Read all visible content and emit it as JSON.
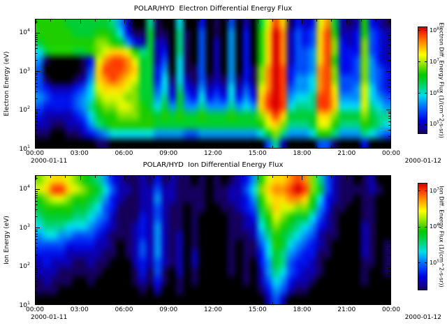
{
  "window": {
    "background": "#ffffff"
  },
  "colormap_stops": [
    [
      0.0,
      "#000000"
    ],
    [
      0.08,
      "#19006e"
    ],
    [
      0.18,
      "#0000e6"
    ],
    [
      0.3,
      "#006eff"
    ],
    [
      0.4,
      "#00dceb"
    ],
    [
      0.5,
      "#00d25a"
    ],
    [
      0.58,
      "#00c800"
    ],
    [
      0.68,
      "#96e600"
    ],
    [
      0.76,
      "#ffff00"
    ],
    [
      0.85,
      "#ffa000"
    ],
    [
      0.93,
      "#ff4600"
    ],
    [
      1.0,
      "#d70000"
    ]
  ],
  "chart_data": [
    {
      "type": "heatmap",
      "title": "POLAR/HYD  Electron Differential Energy Flux",
      "ylabel": "Electron Energy (eV)",
      "y_scale": "log",
      "y_log_range": [
        1,
        4.35
      ],
      "y_decades": [
        4,
        3,
        2,
        1
      ],
      "x_range_hours": [
        0,
        24
      ],
      "x_tick_labels": [
        "00:00",
        "03:00",
        "06:00",
        "09:00",
        "12:00",
        "15:00",
        "18:00",
        "21:00",
        "00:00"
      ],
      "date_left": "2000-01-11",
      "date_right": "2000-01-12",
      "colorbar": {
        "label": "Electron Diff. Energy Flux (1/(cm^2-s-sr))",
        "tick_exponents": [
          8,
          7,
          6,
          5
        ],
        "log_range": [
          4.7,
          8.1
        ]
      },
      "n_cols": 48,
      "col_duration_hours": 0.5,
      "grid_note": "rows top-to-bottom = high-to-low energy (log spaced 10^4.35 to 10^1 eV); 48 half-hour columns; hex digit 0-f = relative log10 flux intensity",
      "grid_hex_rows": [
        "9999888888752007100600301040208bec1323bd82129321",
        "9999988899863118110710401050309cfd2434ce92239432",
        "89999999aa985328220710402050309cfd2434cea323a432",
        "68999889abccb978230710402050309cfd2445cea333a432",
        "51000013bdeedb88240610402050309cfd2445ce9334a532",
        "40000014ceeedc8835061140205031adfe3445dea334a543",
        "41000125cdedcb8836162141215131adfe3556dea444a543",
        "43222346bcccba8846273252326242bdfe4556deb445b643",
        "54333456abbbaa8857384363436353cefe5667eec555b654",
        "433334579aabba9868585575557565cefe6777eec666b765",
        "32222346899aaa9989898898889888acec8888cca888a877",
        "2211223578999999888888888888889bca7778bb97779876",
        "11001123456666665555445555555568a755569975557654",
        "000000001100000000000000000000047200004410003000"
      ]
    },
    {
      "type": "heatmap",
      "title": "POLAR/HYD  Ion Differential Energy Flux",
      "ylabel": "Ion Energy (eV)",
      "y_scale": "log",
      "y_log_range": [
        1,
        4.35
      ],
      "y_decades": [
        4,
        3,
        2,
        1
      ],
      "x_range_hours": [
        0,
        24
      ],
      "x_tick_labels": [
        "00:00",
        "03:00",
        "06:00",
        "09:00",
        "12:00",
        "15:00",
        "18:00",
        "21:00",
        "00:00"
      ],
      "date_left": "2000-01-11",
      "date_right": "2000-01-12",
      "colorbar": {
        "label": "Ion Diff. Energy Flux (1/(cm^2-s-sr))",
        "tick_exponents": [
          7,
          6,
          5
        ],
        "log_range": [
          4.25,
          7.2
        ]
      },
      "n_cols": 48,
      "col_duration_hours": 0.5,
      "grid_note": "rows top-to-bottom = high-to-low energy (log spaced 10^4.35 to 10^1 eV); 48 half-hour columns; hex digit 0-f = relative log10 flux intensity",
      "grid_hex_rows": [
        "abccba9875321121312110101012359bccdeda7421101200",
        "bceecba98642212242211110112246acddefea8421111210",
        "9abba99875321122522111101122359bccddc96321101100",
        "8999988764311122421101100112348acbbaa85311001100",
        "78888776542111324211010000112379ba98864210001100",
        "67776665432112325211010000112268a987653210002100",
        "566554443211123252120100001112579876542110002100",
        "444433332210124252120100001011469865432100002101",
        "333322222110124252120200001011368754331100002101",
        "232221121100023242120200001010358743321000001101",
        "222111111000013141020100001010257643221000001001",
        "121110010000012131010100000010246532210000001000",
        "111000000000001020010000000000135421100000000000",
        "000000000000000000000000000000024200000000000000"
      ]
    }
  ]
}
